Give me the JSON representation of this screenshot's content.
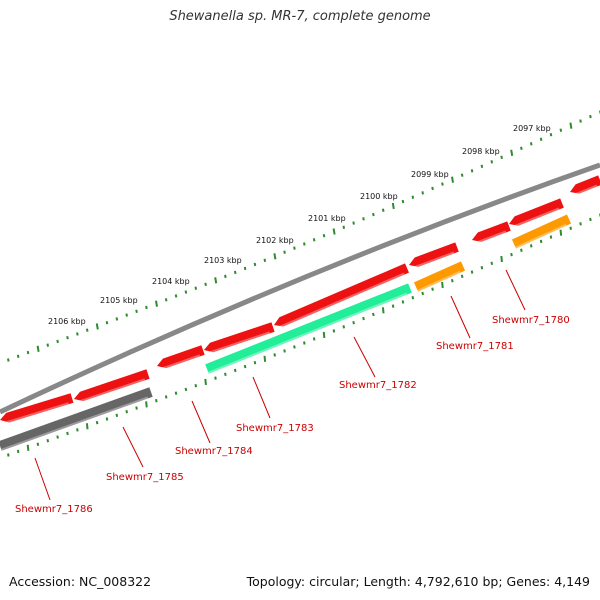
{
  "title": "Shewanella sp. MR-7, complete genome",
  "footer": {
    "accession": "Accession: NC_008322",
    "topology": "Topology: circular; Length: 4,792,610 bp; Genes: 4,149"
  },
  "colors": {
    "background": "#ffffff",
    "backbone": "#888888",
    "tick": "#2e8b2e",
    "gene_forward": "#ee1111",
    "gene_label": "#cc0000",
    "gene_gray": "#666666",
    "gene_teal": "#22ee99",
    "gene_orange": "#ff9900"
  },
  "kbp_labels": [
    "2106 kbp",
    "2105 kbp",
    "2104 kbp",
    "2103 kbp",
    "2102 kbp",
    "2101 kbp",
    "2100 kbp",
    "2099 kbp",
    "2098 kbp",
    "2097 kbp"
  ],
  "gene_labels": [
    "Shewmr7_1786",
    "Shewmr7_1785",
    "Shewmr7_1784",
    "Shewmr7_1783",
    "Shewmr7_1782",
    "Shewmr7_1781",
    "Shewmr7_1780"
  ]
}
